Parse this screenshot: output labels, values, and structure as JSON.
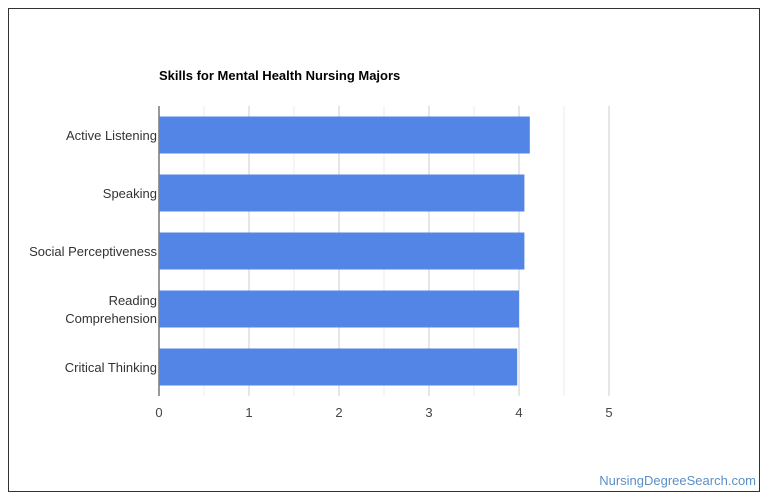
{
  "chart_data": {
    "type": "bar",
    "orientation": "horizontal",
    "title": "Skills for Mental Health Nursing Majors",
    "categories": [
      "Active Listening",
      "Speaking",
      "Social Perceptiveness",
      "Reading Comprehension",
      "Critical Thinking"
    ],
    "category_lines": [
      [
        "Active Listening"
      ],
      [
        "Speaking"
      ],
      [
        "Social Perceptiveness"
      ],
      [
        "Reading",
        "Comprehension"
      ],
      [
        "Critical Thinking"
      ]
    ],
    "values": [
      4.12,
      4.06,
      4.06,
      4.0,
      3.98
    ],
    "x_ticks": [
      "0",
      "1",
      "2",
      "3",
      "4",
      "5"
    ],
    "xlim": [
      0,
      5
    ],
    "xlabel": "",
    "ylabel": "",
    "grid": true,
    "bar_color": "#5285e6"
  },
  "watermark": "NursingDegreeSearch.com"
}
